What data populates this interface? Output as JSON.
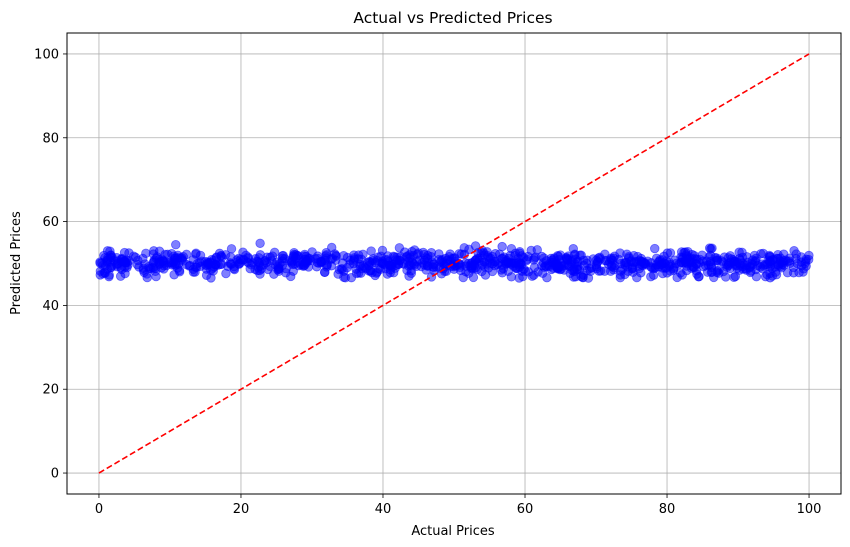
{
  "chart_data": {
    "type": "scatter",
    "title": "Actual vs Predicted Prices",
    "xlabel": "Actual Prices",
    "ylabel": "Predicted Prices",
    "xlim": [
      -4.5,
      104.5
    ],
    "ylim": [
      -5,
      105
    ],
    "x_ticks": [
      0,
      20,
      40,
      60,
      80,
      100
    ],
    "y_ticks": [
      0,
      20,
      40,
      60,
      80,
      100
    ],
    "grid": true,
    "point_color": "#0000ff",
    "point_alpha": 0.5,
    "reference_line": {
      "style": "dashed",
      "color": "#ff0000",
      "from": [
        0,
        0
      ],
      "to": [
        100,
        100
      ]
    },
    "series": [
      {
        "points": {
          "count": 1000,
          "x_range": [
            0,
            100
          ],
          "y_center": 50,
          "y_spread": 1.5,
          "y_min": 46.5,
          "y_max": 58.5
        }
      }
    ]
  }
}
